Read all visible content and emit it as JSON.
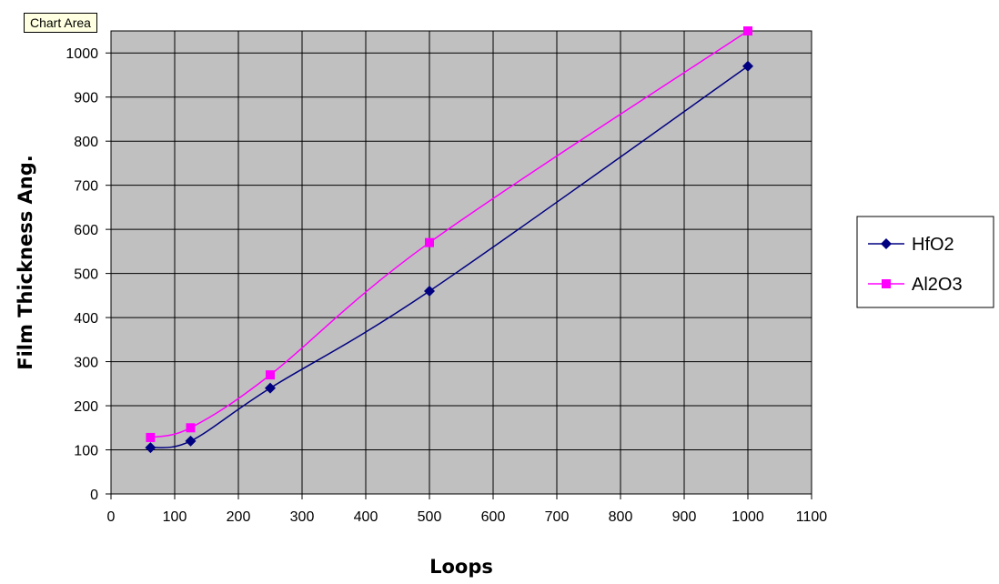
{
  "tooltip": {
    "label": "Chart Area"
  },
  "chart_data": {
    "type": "line",
    "title": "",
    "xlabel": "Loops",
    "ylabel": "Film Thickness Ang.",
    "xlim": [
      0,
      1100
    ],
    "ylim": [
      0,
      1050
    ],
    "xticks": [
      0,
      100,
      200,
      300,
      400,
      500,
      600,
      700,
      800,
      900,
      1000,
      1100
    ],
    "yticks": [
      0,
      100,
      200,
      300,
      400,
      500,
      600,
      700,
      800,
      900,
      1000
    ],
    "grid": true,
    "legend_position": "right",
    "plot_background": "#c0c0c0",
    "series": [
      {
        "name": "HfO2",
        "color": "#000080",
        "marker": "diamond",
        "x": [
          62,
          125,
          250,
          500,
          1000
        ],
        "y": [
          105,
          120,
          240,
          460,
          970
        ]
      },
      {
        "name": "Al2O3",
        "color": "#ff00ff",
        "marker": "square",
        "x": [
          62,
          125,
          250,
          500,
          1000
        ],
        "y": [
          128,
          150,
          270,
          570,
          1050
        ]
      }
    ]
  }
}
